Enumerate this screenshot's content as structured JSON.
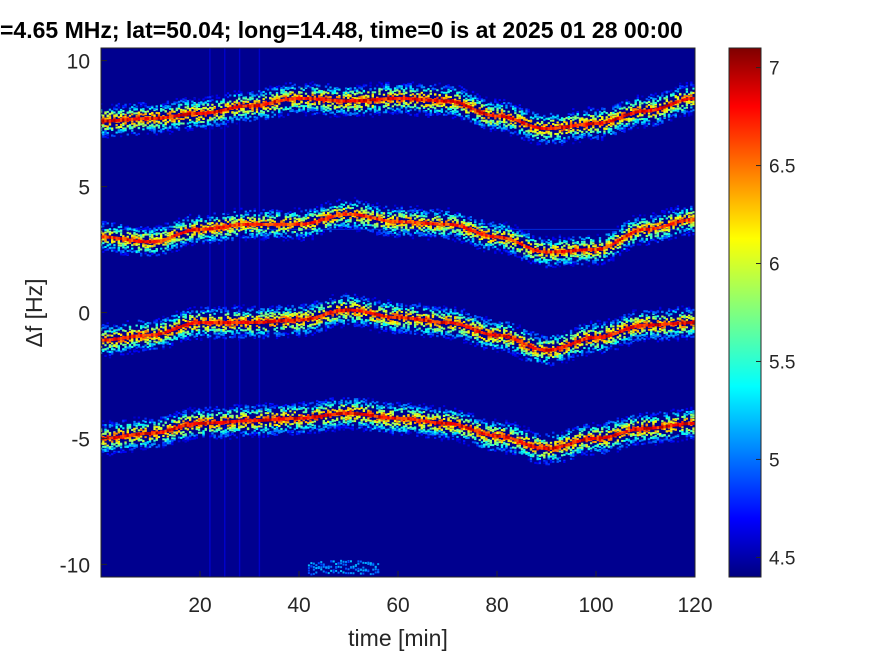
{
  "chart_data": {
    "type": "heatmap",
    "title": "=4.65 MHz;  lat=50.04; long=14.48, time=0 is at 2025 01 28 00:00",
    "xlabel": "time [min]",
    "ylabel": "Δf [Hz]",
    "xlim": [
      0,
      120
    ],
    "ylim": [
      -10.5,
      10.5
    ],
    "x_ticks": [
      "20",
      "40",
      "60",
      "80",
      "100",
      "120"
    ],
    "x_tick_values": [
      20,
      40,
      60,
      80,
      100,
      120
    ],
    "y_ticks": [
      "10",
      "5",
      "0",
      "-5",
      "-10"
    ],
    "y_tick_values": [
      10,
      5,
      0,
      -5,
      -10
    ],
    "colorbar": {
      "colormap": "jet",
      "range": [
        4.4,
        7.1
      ],
      "ticks": [
        "7",
        "6.5",
        "6",
        "5.5",
        "5",
        "4.5"
      ],
      "tick_values": [
        7,
        6.5,
        6,
        5.5,
        5,
        4.5
      ]
    },
    "background_level": 4.45,
    "traces": [
      {
        "points": [
          [
            0,
            7.6
          ],
          [
            10,
            7.7
          ],
          [
            20,
            7.9
          ],
          [
            30,
            8.2
          ],
          [
            40,
            8.5
          ],
          [
            50,
            8.4
          ],
          [
            60,
            8.5
          ],
          [
            70,
            8.4
          ],
          [
            80,
            7.8
          ],
          [
            90,
            7.3
          ],
          [
            100,
            7.5
          ],
          [
            110,
            8.0
          ],
          [
            120,
            8.5
          ]
        ],
        "peak": 7.0
      },
      {
        "points": [
          [
            0,
            3.0
          ],
          [
            10,
            2.8
          ],
          [
            20,
            3.3
          ],
          [
            30,
            3.5
          ],
          [
            40,
            3.5
          ],
          [
            50,
            3.9
          ],
          [
            60,
            3.6
          ],
          [
            70,
            3.5
          ],
          [
            80,
            3.0
          ],
          [
            90,
            2.4
          ],
          [
            100,
            2.5
          ],
          [
            110,
            3.3
          ],
          [
            120,
            3.7
          ]
        ],
        "peak": 6.9
      },
      {
        "points": [
          [
            0,
            -1.1
          ],
          [
            10,
            -0.9
          ],
          [
            20,
            -0.4
          ],
          [
            30,
            -0.4
          ],
          [
            40,
            -0.3
          ],
          [
            50,
            0.1
          ],
          [
            60,
            -0.2
          ],
          [
            70,
            -0.4
          ],
          [
            80,
            -0.9
          ],
          [
            90,
            -1.5
          ],
          [
            100,
            -1.0
          ],
          [
            110,
            -0.5
          ],
          [
            120,
            -0.4
          ]
        ],
        "peak": 7.0
      },
      {
        "points": [
          [
            0,
            -5.0
          ],
          [
            10,
            -4.8
          ],
          [
            20,
            -4.4
          ],
          [
            30,
            -4.3
          ],
          [
            40,
            -4.2
          ],
          [
            50,
            -4.0
          ],
          [
            60,
            -4.2
          ],
          [
            70,
            -4.4
          ],
          [
            80,
            -4.9
          ],
          [
            90,
            -5.4
          ],
          [
            100,
            -5.0
          ],
          [
            110,
            -4.6
          ],
          [
            120,
            -4.4
          ]
        ],
        "peak": 7.0
      }
    ],
    "reference_line_y": 3.3,
    "vertical_streaks_x": [
      22,
      25,
      28,
      32
    ]
  }
}
